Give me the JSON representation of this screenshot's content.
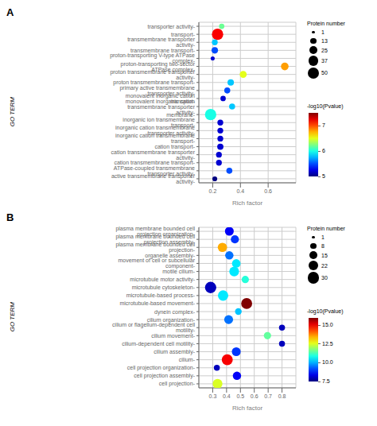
{
  "chart_data": [
    {
      "type": "scatter",
      "title": "A",
      "x_label": "Rich factor",
      "y_label": "GO TERM",
      "categories": [
        "transporter activity-",
        "transport-",
        "transmembrane transporter activity-",
        "transmembrane transport-",
        "proton-transporting V-type ATPase complex-",
        "proton-transporting two-sector ATPase complex-",
        "proton transmembrane transporter activity-",
        "proton transmembrane transport-",
        "primary active transmembrane transporter activity-",
        "monovalent inorganic cation transport-",
        "monovalent inorganic cation transmembrane transporter activity-",
        "membrane-",
        "inorganic ion transmembrane transport-",
        "inorganic cation transmembrane transporter activity-",
        "inorganic cation transmembrane transport-",
        "cation transport-",
        "cation transmembrane transporter activity-",
        "cation transmembrane transport-",
        "ATPase-coupled transmembrane transporter activity-",
        "active transmembrane transporter activity-"
      ],
      "values": [
        0.265,
        0.235,
        0.215,
        0.215,
        0.2,
        0.72,
        0.42,
        0.33,
        0.305,
        0.275,
        0.34,
        0.185,
        0.255,
        0.255,
        0.255,
        0.255,
        0.245,
        0.245,
        0.32,
        0.215
      ],
      "sizes": [
        10,
        50,
        12,
        15,
        5,
        22,
        18,
        15,
        13,
        10,
        13,
        50,
        12,
        12,
        12,
        14,
        12,
        12,
        13,
        8
      ],
      "color_values": [
        6.2,
        7.2,
        5.8,
        5.5,
        5.2,
        6.8,
        6.5,
        5.8,
        5.5,
        5.2,
        5.8,
        6.0,
        5.2,
        5.2,
        5.2,
        5.2,
        5.2,
        5.2,
        5.5,
        5.0
      ],
      "xlim": [
        0.1,
        0.8
      ],
      "xticks": [
        0.2,
        0.4,
        0.6
      ],
      "grid": true,
      "size_legend": {
        "title": "Protein number",
        "values": [
          1,
          13,
          25,
          37,
          50
        ]
      },
      "colorbar": {
        "title": "-log10(Pvalue)",
        "range": [
          5.0,
          7.5
        ],
        "ticks": [
          5,
          6,
          7
        ]
      }
    },
    {
      "type": "scatter",
      "title": "B",
      "x_label": "Rich factor",
      "y_label": "GO TERM",
      "categories": [
        "plasma membrane bounded cell projection organization-",
        "plasma membrane bounded cell projection assembly-",
        "plasma membrane bounded cell projection-",
        "organelle assembly-",
        "movement of cell or subcellular component-",
        "motile cilium-",
        "microtubule motor activity-",
        "microtubule cytoskeleton-",
        "microtubule-based process-",
        "microtubule-based movement-",
        "dynein complex-",
        "cilium organization-",
        "cilium or flagellum-dependent cell motility-",
        "cilium movement-",
        "cilium-dependent cell motility-",
        "cilium assembly-",
        "cilium-",
        "cell projection organization-",
        "cell projection assembly-",
        "cell projection-"
      ],
      "values": [
        0.42,
        0.46,
        0.37,
        0.42,
        0.47,
        0.455,
        0.535,
        0.285,
        0.375,
        0.545,
        0.485,
        0.415,
        0.8,
        0.695,
        0.8,
        0.47,
        0.405,
        0.33,
        0.475,
        0.335
      ],
      "sizes": [
        18,
        15,
        20,
        16,
        17,
        22,
        12,
        30,
        25,
        28,
        10,
        18,
        8,
        12,
        8,
        18,
        28,
        8,
        16,
        22
      ],
      "color_values": [
        8.5,
        9.0,
        13.5,
        9.5,
        10.5,
        10.5,
        11.0,
        8.0,
        10.5,
        16.0,
        10.2,
        9.5,
        8.0,
        11.5,
        8.0,
        9.0,
        15.0,
        8.0,
        8.5,
        12.5
      ],
      "xlim": [
        0.2,
        0.9
      ],
      "xticks": [
        0.3,
        0.4,
        0.5,
        0.6,
        0.7,
        0.8
      ],
      "grid": true,
      "size_legend": {
        "title": "Protein number",
        "values": [
          1,
          8,
          15,
          22,
          30
        ]
      },
      "colorbar": {
        "title": "-log10(Pvalue)",
        "range": [
          7.5,
          16.0
        ],
        "ticks": [
          7.5,
          {
            "value": 10,
            "label": "10.0"
          },
          12.5,
          {
            "value": 15,
            "label": "15.0"
          }
        ]
      }
    }
  ]
}
